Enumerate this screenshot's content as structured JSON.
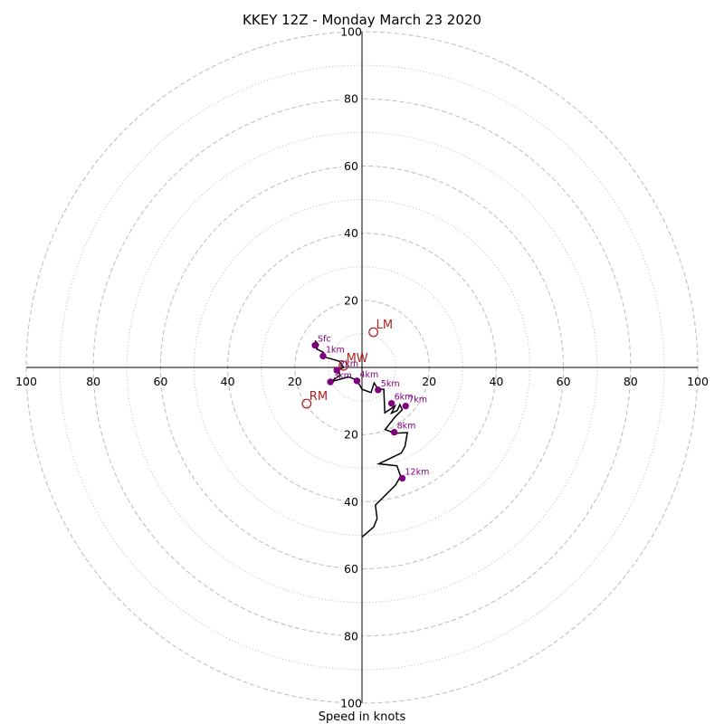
{
  "chart_data": {
    "type": "scatter",
    "title": "KKEY 12Z - Monday March 23 2020",
    "xlabel": "Speed in knots",
    "ylabel": "",
    "xlim": [
      -100,
      100
    ],
    "ylim": [
      -100,
      100
    ],
    "rings_major": [
      20,
      40,
      60,
      80,
      100
    ],
    "rings_minor": [
      10,
      30,
      50,
      70,
      90
    ],
    "tick_labels": [
      "100",
      "80",
      "60",
      "40",
      "20",
      "20",
      "40",
      "60",
      "80",
      "100"
    ],
    "grid": true,
    "colors": {
      "trace": "#000000",
      "height_marker": "#800080",
      "motion_marker": "#b22222",
      "grid": "#bbbbbb"
    },
    "series": [
      {
        "name": "hodograph",
        "points": [
          [
            -14,
            8
          ],
          [
            -13,
            6.8
          ],
          [
            -13.5,
            5.5
          ],
          [
            -11.5,
            4.5
          ],
          [
            -12,
            3.3
          ],
          [
            -9,
            2.5
          ],
          [
            -6.7,
            1.8
          ],
          [
            -5.5,
            0
          ],
          [
            -7.5,
            -0.8
          ],
          [
            -6.5,
            -2.3
          ],
          [
            -9.4,
            -4.3
          ],
          [
            -4,
            -2.8
          ],
          [
            -1.5,
            -3.8
          ],
          [
            0,
            -6.5
          ],
          [
            2.7,
            -7.5
          ],
          [
            3.6,
            -4.6
          ],
          [
            4.8,
            -6.5
          ],
          [
            6.5,
            -6.5
          ],
          [
            6.8,
            -13.5
          ],
          [
            9.8,
            -11.5
          ],
          [
            8.8,
            -13.6
          ],
          [
            10.5,
            -12.8
          ],
          [
            11.3,
            -11.1
          ],
          [
            12,
            -12.6
          ],
          [
            9.9,
            -14.7
          ],
          [
            6.9,
            -18.5
          ],
          [
            9.7,
            -19.6
          ],
          [
            13.5,
            -19.4
          ],
          [
            12.8,
            -23.5
          ],
          [
            11.7,
            -25.5
          ],
          [
            5,
            -28.7
          ],
          [
            10.4,
            -29.3
          ],
          [
            11.5,
            -32.4
          ],
          [
            10,
            -35
          ],
          [
            4,
            -41
          ],
          [
            4.5,
            -45
          ],
          [
            3.5,
            -47.5
          ],
          [
            0,
            -50.5
          ]
        ]
      }
    ],
    "height_markers": [
      {
        "label": "Sfc",
        "x": -14,
        "y": 6.6
      },
      {
        "label": "1km",
        "x": -11.6,
        "y": 3.4
      },
      {
        "label": "2km",
        "x": -7.5,
        "y": -0.8
      },
      {
        "label": "3km",
        "x": -9.4,
        "y": -4.3
      },
      {
        "label": "4km",
        "x": -1.5,
        "y": -4
      },
      {
        "label": "5km",
        "x": 4.8,
        "y": -6.7
      },
      {
        "label": "6km",
        "x": 8.8,
        "y": -10.7
      },
      {
        "label": "7km",
        "x": 13,
        "y": -11.5
      },
      {
        "label": "8km",
        "x": 9.6,
        "y": -19.3
      },
      {
        "label": "12km",
        "x": 12,
        "y": -33
      }
    ],
    "storm_motions": [
      {
        "label": "LM",
        "x": 3.4,
        "y": 10.5
      },
      {
        "label": "RM",
        "x": -16.5,
        "y": -10.8
      },
      {
        "label": "MW",
        "x": -5.5,
        "y": 0.5
      }
    ]
  }
}
